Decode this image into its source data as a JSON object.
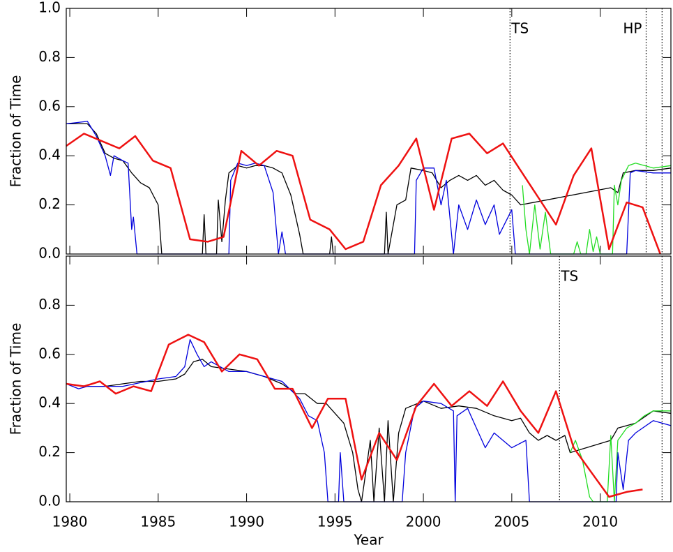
{
  "chart_data": [
    {
      "type": "line",
      "ylabel": "Fraction of Time",
      "xlim": [
        1979.8,
        2014.0
      ],
      "ylim": [
        0,
        1.0
      ],
      "yticks": [
        {
          "value": 0,
          "label": "0.0"
        },
        0.2,
        0.4,
        0.6,
        0.8,
        {
          "value": 1.0,
          "label": "1.0"
        }
      ],
      "vlines": [
        {
          "x": 2004.9,
          "label": "TS"
        },
        {
          "x": 2012.6,
          "label": "HP"
        },
        {
          "x": 2013.5
        }
      ],
      "series": [
        {
          "color": "#000000",
          "x": [
            1979.8,
            1981,
            1981.5,
            1982,
            1982.5,
            1983,
            1983.5,
            1984,
            1984.5,
            1985,
            1985.2,
            1987.5,
            1987.6,
            1987.7,
            1988.3,
            1988.4,
            1988.6,
            1988.8,
            1989,
            1989.5,
            1990,
            1990.5,
            1991,
            1991.5,
            1992,
            1992.5,
            1993,
            1993.2,
            1994.7,
            1994.8,
            1994.9,
            1997.8,
            1997.9,
            1998,
            1998.5,
            1999,
            1999.3,
            2000,
            2000.5,
            2001,
            2001.5,
            2002,
            2002.5,
            2003,
            2003.5,
            2004,
            2004.5,
            2005,
            2005.5,
            2010.6,
            2011,
            2011.3,
            2012,
            2013,
            2014
          ],
          "values": [
            0.53,
            0.53,
            0.49,
            0.41,
            0.39,
            0.38,
            0.33,
            0.29,
            0.27,
            0.2,
            0,
            0,
            0.16,
            0,
            0,
            0.22,
            0.05,
            0.22,
            0.33,
            0.36,
            0.35,
            0.36,
            0.36,
            0.35,
            0.33,
            0.24,
            0.08,
            0,
            0,
            0.07,
            0,
            0,
            0.17,
            0,
            0.2,
            0.22,
            0.35,
            0.34,
            0.33,
            0.27,
            0.3,
            0.32,
            0.3,
            0.32,
            0.28,
            0.3,
            0.26,
            0.24,
            0.2,
            0.27,
            0.25,
            0.33,
            0.34,
            0.34,
            0.35
          ]
        },
        {
          "color": "#0000dd",
          "x": [
            1979.8,
            1981,
            1981.5,
            1982,
            1982.3,
            1982.5,
            1983,
            1983.3,
            1983.5,
            1983.6,
            1983.8,
            1989,
            1989.1,
            1989.5,
            1990,
            1990.5,
            1991,
            1991.5,
            1991.8,
            1992,
            1992.2,
            1999.5,
            1999.6,
            2000,
            2000.6,
            2001,
            2001.3,
            2001.7,
            2002,
            2002.5,
            2003,
            2003.5,
            2004,
            2004.3,
            2005,
            2005.2,
            2011.5,
            2011.7,
            2012,
            2013,
            2014
          ],
          "values": [
            0.53,
            0.54,
            0.48,
            0.4,
            0.32,
            0.4,
            0.38,
            0.37,
            0.1,
            0.15,
            0,
            0,
            0.3,
            0.37,
            0.36,
            0.37,
            0.36,
            0.25,
            0,
            0.09,
            0,
            0,
            0.3,
            0.35,
            0.35,
            0.2,
            0.3,
            0,
            0.2,
            0.1,
            0.22,
            0.12,
            0.2,
            0.08,
            0.18,
            0,
            0,
            0.33,
            0.34,
            0.33,
            0.33
          ]
        },
        {
          "color": "#22dd22",
          "x": [
            2005.6,
            2005.8,
            2006,
            2006.3,
            2006.6,
            2006.9,
            2007.2,
            2008.5,
            2008.7,
            2008.9,
            2009.2,
            2009.4,
            2009.6,
            2009.8,
            2010,
            2010.7,
            2010.8,
            2011,
            2011.2,
            2011.6,
            2012,
            2012.5,
            2013,
            2014
          ],
          "values": [
            0.28,
            0.1,
            0,
            0.2,
            0.02,
            0.17,
            0,
            0,
            0.05,
            0,
            0,
            0.1,
            0.01,
            0.07,
            0,
            0,
            0.28,
            0.2,
            0.3,
            0.36,
            0.37,
            0.36,
            0.35,
            0.36
          ]
        },
        {
          "color": "#ee1111",
          "width": 2.5,
          "x": [
            1979.8,
            1980.8,
            1982.8,
            1983.7,
            1984.7,
            1985.7,
            1986.8,
            1987.8,
            1988.7,
            1989.7,
            1990.7,
            1991.7,
            1992.6,
            1993.6,
            1994.7,
            1995.6,
            1996.6,
            1997.6,
            1998.6,
            1999.6,
            2000.6,
            2001.6,
            2002.6,
            2003.6,
            2004.5,
            2005.5,
            2006.5,
            2007.5,
            2008.5,
            2009.5,
            2010.5,
            2011.5,
            2012.4,
            2013.4
          ],
          "values": [
            0.44,
            0.49,
            0.43,
            0.48,
            0.38,
            0.35,
            0.06,
            0.05,
            0.07,
            0.42,
            0.36,
            0.42,
            0.4,
            0.14,
            0.1,
            0.02,
            0.05,
            0.28,
            0.36,
            0.47,
            0.18,
            0.47,
            0.49,
            0.41,
            0.45,
            0.34,
            0.23,
            0.12,
            0.32,
            0.43,
            0.02,
            0.21,
            0.19,
            0
          ]
        }
      ]
    },
    {
      "type": "line",
      "ylabel": "Fraction of Time",
      "xlabel": "Year",
      "xlim": [
        1979.8,
        2014.0
      ],
      "ylim": [
        0,
        1.0
      ],
      "xticks": [
        1980,
        1985,
        1990,
        1995,
        2000,
        2005,
        2010
      ],
      "yticks": [
        {
          "value": 0,
          "label": "0.0"
        },
        0.2,
        0.4,
        0.6,
        0.8
      ],
      "vlines": [
        {
          "x": 2007.7,
          "label": "TS"
        },
        {
          "x": 2013.5
        }
      ],
      "series": [
        {
          "color": "#000000",
          "x": [
            1979.8,
            1981,
            1982,
            1983,
            1984,
            1985,
            1986,
            1986.5,
            1987,
            1987.5,
            1988,
            1989,
            1990,
            1991,
            1992,
            1992.8,
            1993.3,
            1994,
            1994.5,
            1995,
            1995.5,
            1996,
            1996.3,
            1996.5,
            1997,
            1997.2,
            1997.5,
            1997.8,
            1998,
            1998.3,
            1998.6,
            1999,
            2000,
            2001,
            2002,
            2003,
            2004,
            2005,
            2005.5,
            2006,
            2006.5,
            2007,
            2007.5,
            2008,
            2008.3,
            2010.6,
            2011,
            2012,
            2013,
            2014
          ],
          "values": [
            0.48,
            0.47,
            0.47,
            0.48,
            0.49,
            0.49,
            0.5,
            0.52,
            0.57,
            0.58,
            0.55,
            0.54,
            0.53,
            0.51,
            0.48,
            0.44,
            0.44,
            0.4,
            0.4,
            0.36,
            0.32,
            0.2,
            0.05,
            0,
            0.25,
            0,
            0.3,
            0,
            0.33,
            0,
            0.28,
            0.38,
            0.41,
            0.38,
            0.39,
            0.38,
            0.35,
            0.33,
            0.34,
            0.28,
            0.25,
            0.27,
            0.25,
            0.27,
            0.2,
            0.25,
            0.3,
            0.32,
            0.37,
            0.36
          ]
        },
        {
          "color": "#0000dd",
          "x": [
            1979.8,
            1980.5,
            1981,
            1983,
            1985,
            1986,
            1986.5,
            1986.8,
            1987.2,
            1987.6,
            1988,
            1989,
            1990,
            1991,
            1992,
            1993,
            1993.5,
            1994,
            1994.4,
            1994.6,
            1995.2,
            1995.3,
            1995.5,
            1998.8,
            1999,
            1999.5,
            2000,
            2001,
            2001.7,
            2001.8,
            2001.9,
            2002.5,
            2003,
            2003.5,
            2004,
            2005,
            2005.8,
            2006,
            2010.9,
            2011,
            2011.3,
            2011.6,
            2012,
            2013,
            2014
          ],
          "values": [
            0.48,
            0.46,
            0.47,
            0.47,
            0.5,
            0.51,
            0.55,
            0.66,
            0.6,
            0.55,
            0.57,
            0.53,
            0.53,
            0.51,
            0.49,
            0.42,
            0.35,
            0.33,
            0.2,
            0,
            0,
            0.2,
            0,
            0,
            0.2,
            0.38,
            0.41,
            0.4,
            0.37,
            0,
            0.35,
            0.38,
            0.3,
            0.22,
            0.28,
            0.22,
            0.25,
            0,
            0,
            0.2,
            0.05,
            0.25,
            0.28,
            0.33,
            0.31
          ]
        },
        {
          "color": "#22dd22",
          "x": [
            2008.3,
            2008.6,
            2009,
            2009.4,
            2009.6,
            2010.4,
            2010.6,
            2010.8,
            2011,
            2011.5,
            2012,
            2012.5,
            2013,
            2014
          ],
          "values": [
            0.2,
            0.25,
            0.17,
            0.02,
            0,
            0,
            0.27,
            0,
            0.25,
            0.3,
            0.32,
            0.35,
            0.37,
            0.37
          ]
        },
        {
          "color": "#ee1111",
          "width": 2.5,
          "x": [
            1979.8,
            1980.8,
            1981.7,
            1982.6,
            1983.6,
            1984.6,
            1985.6,
            1986.7,
            1987.6,
            1988.6,
            1989.6,
            1990.6,
            1991.6,
            1992.6,
            1993.7,
            1994.6,
            1995.6,
            1996.5,
            1997.5,
            1998.5,
            1999.6,
            2000.6,
            2001.6,
            2002.6,
            2003.6,
            2004.5,
            2005.5,
            2006.5,
            2007.5,
            2008.5,
            2009.5,
            2010.5,
            2011.5,
            2012.4
          ],
          "values": [
            0.48,
            0.47,
            0.49,
            0.44,
            0.47,
            0.45,
            0.64,
            0.68,
            0.65,
            0.53,
            0.6,
            0.58,
            0.46,
            0.46,
            0.3,
            0.42,
            0.42,
            0.09,
            0.28,
            0.17,
            0.39,
            0.48,
            0.39,
            0.45,
            0.39,
            0.49,
            0.37,
            0.28,
            0.45,
            0.22,
            0.12,
            0.02,
            0.04,
            0.05
          ]
        }
      ]
    }
  ]
}
